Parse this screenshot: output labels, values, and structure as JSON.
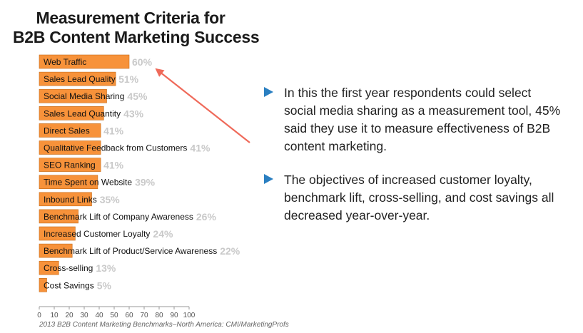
{
  "title": {
    "line1": "Measurement Criteria for",
    "line2": "B2B Content Marketing Success"
  },
  "source": "2013 B2B Content Marketing Benchmarks–North America: CMI/MarketingProfs",
  "bullets": [
    "In this the first year respondents could select social media sharing as a measurement tool, 45% said they use it to measure effectiveness of B2B content marketing.",
    "The objectives of increased customer loyalty, benchmark lift, cross-selling, and cost savings all decreased year-over-year."
  ],
  "colors": {
    "bar": "#f7923a",
    "bar_border": "#c46a18",
    "value_label": "#c9c9c9",
    "arrow": "#ef6a5a",
    "bullet_icon": "#2a7fc1"
  },
  "chart_data": {
    "type": "bar",
    "orientation": "horizontal",
    "categories": [
      "Web Traffic",
      "Sales Lead Quality",
      "Social Media Sharing",
      "Sales Lead Quantity",
      "Direct Sales",
      "Qualitative Feedback from Customers",
      "SEO Ranking",
      "Time Spent on Website",
      "Inbound Links",
      "Benchmark Lift of Company Awareness",
      "Increased Customer Loyalty",
      "Benchmark Lift of Product/Service Awareness",
      "Cross-selling",
      "Cost Savings"
    ],
    "values": [
      60,
      51,
      45,
      43,
      41,
      41,
      41,
      39,
      35,
      26,
      24,
      22,
      13,
      5
    ],
    "value_labels": [
      "60%",
      "51%",
      "45%",
      "43%",
      "41%",
      "41%",
      "41%",
      "39%",
      "35%",
      "26%",
      "24%",
      "22%",
      "13%",
      "5%"
    ],
    "xlim": [
      0,
      100
    ],
    "xticks": [
      "0",
      "10",
      "20",
      "30",
      "40",
      "50",
      "60",
      "70",
      "80",
      "90",
      "100"
    ],
    "grid": false,
    "annotation": "arrow pointing to Web Traffic value"
  }
}
